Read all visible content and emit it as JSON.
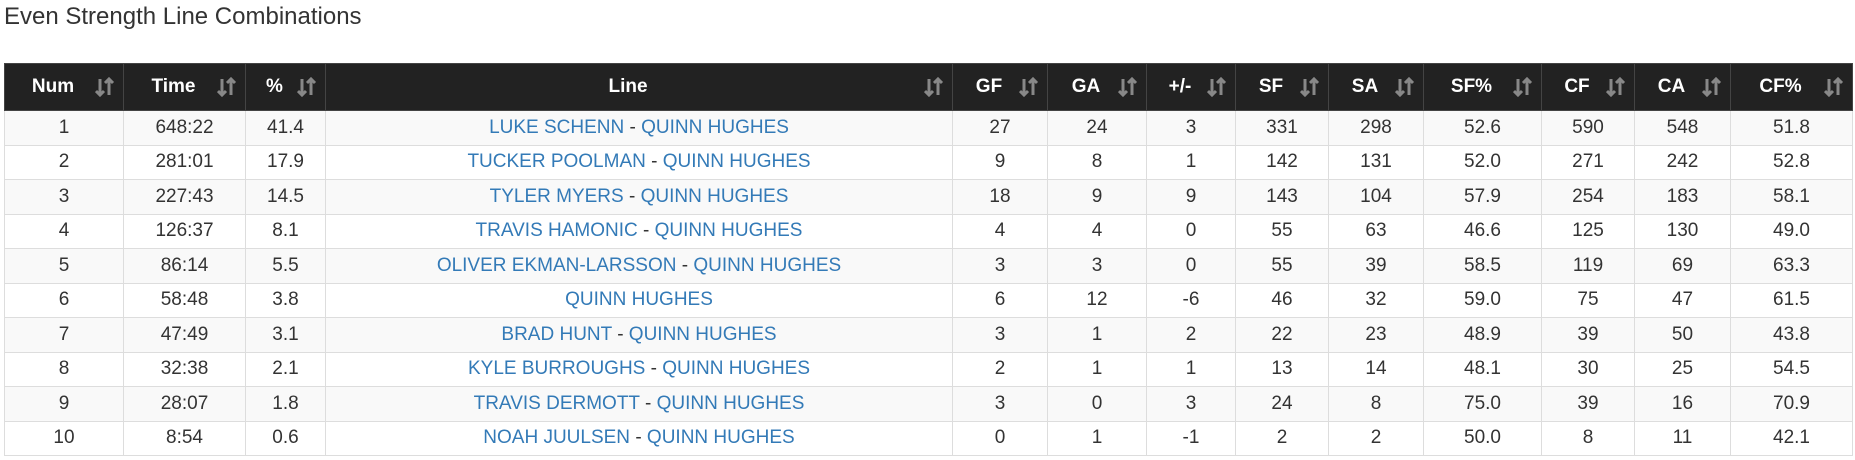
{
  "title": "Even Strength Line Combinations",
  "separator": "-",
  "table": {
    "columns": [
      "Num",
      "Time",
      "%",
      "Line",
      "GF",
      "GA",
      "+/-",
      "SF",
      "SA",
      "SF%",
      "CF",
      "CA",
      "CF%"
    ],
    "rows": [
      [
        "1",
        "648:22",
        "41.4",
        [
          "LUKE SCHENN",
          "QUINN HUGHES"
        ],
        "27",
        "24",
        "3",
        "331",
        "298",
        "52.6",
        "590",
        "548",
        "51.8"
      ],
      [
        "2",
        "281:01",
        "17.9",
        [
          "TUCKER POOLMAN",
          "QUINN HUGHES"
        ],
        "9",
        "8",
        "1",
        "142",
        "131",
        "52.0",
        "271",
        "242",
        "52.8"
      ],
      [
        "3",
        "227:43",
        "14.5",
        [
          "TYLER MYERS",
          "QUINN HUGHES"
        ],
        "18",
        "9",
        "9",
        "143",
        "104",
        "57.9",
        "254",
        "183",
        "58.1"
      ],
      [
        "4",
        "126:37",
        "8.1",
        [
          "TRAVIS HAMONIC",
          "QUINN HUGHES"
        ],
        "4",
        "4",
        "0",
        "55",
        "63",
        "46.6",
        "125",
        "130",
        "49.0"
      ],
      [
        "5",
        "86:14",
        "5.5",
        [
          "OLIVER EKMAN-LARSSON",
          "QUINN HUGHES"
        ],
        "3",
        "3",
        "0",
        "55",
        "39",
        "58.5",
        "119",
        "69",
        "63.3"
      ],
      [
        "6",
        "58:48",
        "3.8",
        [
          "QUINN HUGHES"
        ],
        "6",
        "12",
        "-6",
        "46",
        "32",
        "59.0",
        "75",
        "47",
        "61.5"
      ],
      [
        "7",
        "47:49",
        "3.1",
        [
          "BRAD HUNT",
          "QUINN HUGHES"
        ],
        "3",
        "1",
        "2",
        "22",
        "23",
        "48.9",
        "39",
        "50",
        "43.8"
      ],
      [
        "8",
        "32:38",
        "2.1",
        [
          "KYLE BURROUGHS",
          "QUINN HUGHES"
        ],
        "2",
        "1",
        "1",
        "13",
        "14",
        "48.1",
        "30",
        "25",
        "54.5"
      ],
      [
        "9",
        "28:07",
        "1.8",
        [
          "TRAVIS DERMOTT",
          "QUINN HUGHES"
        ],
        "3",
        "0",
        "3",
        "24",
        "8",
        "75.0",
        "39",
        "16",
        "70.9"
      ],
      [
        "10",
        "8:54",
        "0.6",
        [
          "NOAH JUULSEN",
          "QUINN HUGHES"
        ],
        "0",
        "1",
        "-1",
        "2",
        "2",
        "50.0",
        "8",
        "11",
        "42.1"
      ]
    ]
  }
}
